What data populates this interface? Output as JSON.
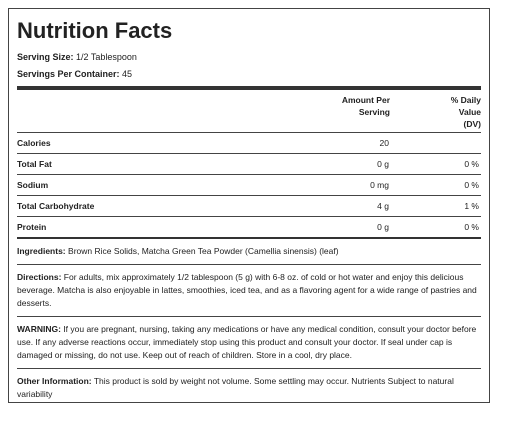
{
  "header": {
    "title": "Nutrition Facts",
    "serving_size": {
      "label": "Serving Size:",
      "value": "1/2 Tablespoon"
    },
    "servings_per_container": {
      "label": "Servings Per Container:",
      "value": "45"
    }
  },
  "table": {
    "columns": [
      "Amount Per Serving",
      "% Daily Value (DV)"
    ],
    "rows": [
      {
        "name": "Calories",
        "amount": "20"
      },
      {
        "name": "Total Fat",
        "amount": "0 g",
        "dv": "0 %"
      },
      {
        "name": "Sodium",
        "amount": "0 mg",
        "dv": "0 %"
      },
      {
        "name": "Total Carbohydrate",
        "amount": "4 g",
        "dv": "1 %"
      },
      {
        "name": "Protein",
        "amount": "0 g",
        "dv": "0 %"
      }
    ]
  },
  "notes": [
    {
      "label": "Ingredients:",
      "text": "Brown Rice Solids, Matcha Green Tea Powder (Camellia sinensis) (leaf)"
    },
    {
      "label": "Directions:",
      "text": "For adults, mix approximately 1/2 tablespoon (5 g) with 6-8 oz. of cold or hot water and enjoy this delicious beverage. Matcha is also enjoyable in lattes, smoothies, iced tea, and as a flavoring agent for a wide range of pastries and desserts."
    },
    {
      "label": "WARNING:",
      "text": "If you are pregnant, nursing, taking any medications or have any medical condition, consult your doctor before use. If any adverse reactions occur, immediately stop using this product and consult your doctor. If seal under cap is damaged or missing, do not use. Keep out of reach of children. Store in a cool, dry place."
    },
    {
      "label": "Other Information:",
      "text": "This product is sold by weight not volume. Some settling may occur. Nutrients Subject to natural variability"
    }
  ]
}
